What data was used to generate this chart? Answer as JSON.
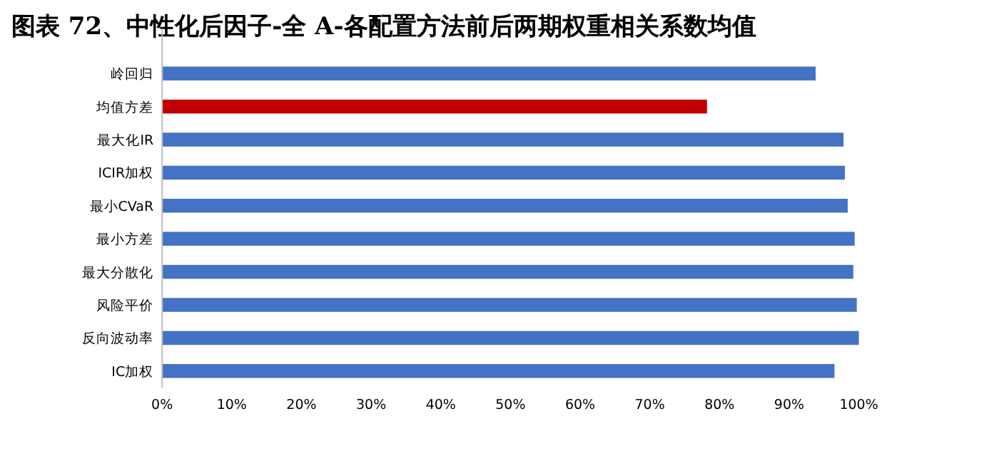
{
  "chart_data": {
    "type": "bar",
    "orientation": "horizontal",
    "title": "图表 72、中性化后因子-全 A-各配置方法前后两期权重相关系数均值",
    "categories": [
      "岭回归",
      "均值方差",
      "最大化IR",
      "ICIR加权",
      "最小CVaR",
      "最小方差",
      "最大分散化",
      "风险平价",
      "反向波动率",
      "IC加权"
    ],
    "values": [
      93.8,
      78.2,
      97.8,
      98.0,
      98.4,
      99.4,
      99.2,
      99.7,
      100.0,
      96.5
    ],
    "colors": [
      "#4472c4",
      "#c00000",
      "#4472c4",
      "#4472c4",
      "#4472c4",
      "#4472c4",
      "#4472c4",
      "#4472c4",
      "#4472c4",
      "#4472c4"
    ],
    "xlim": [
      0,
      100
    ],
    "xticks": [
      {
        "value": 0,
        "label": "0%"
      },
      {
        "value": 10,
        "label": "10%"
      },
      {
        "value": 20,
        "label": "20%"
      },
      {
        "value": 30,
        "label": "30%"
      },
      {
        "value": 40,
        "label": "40%"
      },
      {
        "value": 50,
        "label": "50%"
      },
      {
        "value": 60,
        "label": "60%"
      },
      {
        "value": 70,
        "label": "70%"
      },
      {
        "value": 80,
        "label": "80%"
      },
      {
        "value": 90,
        "label": "90%"
      },
      {
        "value": 100,
        "label": "100%"
      }
    ],
    "grid": false
  }
}
